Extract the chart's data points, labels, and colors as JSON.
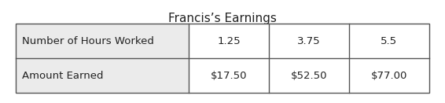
{
  "title": "Francis’s Earnings",
  "rows": [
    [
      "Number of Hours Worked",
      "1.25",
      "3.75",
      "5.5"
    ],
    [
      "Amount Earned",
      "$17.50",
      "$52.50",
      "$77.00"
    ]
  ],
  "title_fontsize": 11,
  "cell_fontsize": 9.5,
  "bg_header_col": "#ebebeb",
  "bg_data_col": "#ffffff",
  "border_color": "#555555",
  "text_color": "#222222",
  "title_color": "#222222"
}
